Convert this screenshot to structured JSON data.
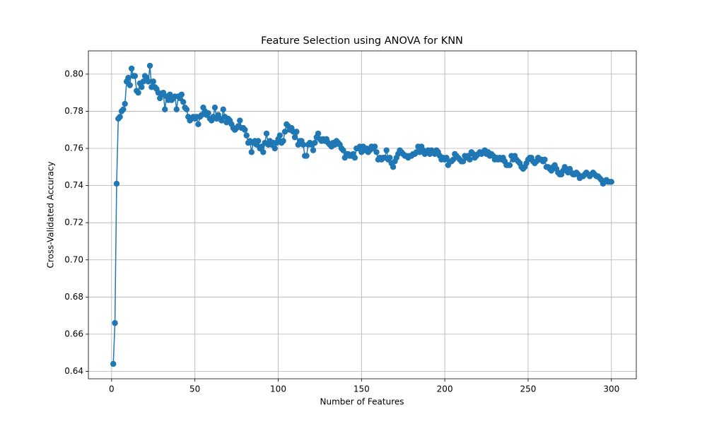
{
  "chart_data": {
    "type": "line",
    "title": "Feature Selection using ANOVA for KNN",
    "xlabel": "Number of Features",
    "ylabel": "Cross-Validated Accuracy",
    "color": "#1f77b4",
    "grid": true,
    "xlim": [
      -13.95,
      314.95
    ],
    "ylim": [
      0.636,
      0.8125
    ],
    "xticks": [
      0,
      50,
      100,
      150,
      200,
      250,
      300
    ],
    "yticks": [
      0.64,
      0.66,
      0.68,
      {
        "value": 0.7,
        "label": "0.70"
      },
      0.72,
      0.74,
      0.76,
      0.78,
      {
        "value": 0.8,
        "label": "0.80"
      }
    ],
    "x": [
      1,
      2,
      3,
      4,
      5,
      6,
      7,
      8,
      9,
      10,
      11,
      12,
      13,
      14,
      15,
      16,
      17,
      18,
      19,
      20,
      21,
      22,
      23,
      24,
      25,
      26,
      27,
      28,
      29,
      30,
      31,
      32,
      33,
      34,
      35,
      36,
      37,
      38,
      39,
      40,
      41,
      42,
      43,
      44,
      45,
      46,
      47,
      48,
      49,
      50,
      51,
      52,
      53,
      54,
      55,
      56,
      57,
      58,
      59,
      60,
      61,
      62,
      63,
      64,
      65,
      66,
      67,
      68,
      69,
      70,
      71,
      72,
      73,
      74,
      75,
      76,
      77,
      78,
      79,
      80,
      81,
      82,
      83,
      84,
      85,
      86,
      87,
      88,
      89,
      90,
      91,
      92,
      93,
      94,
      95,
      96,
      97,
      98,
      99,
      100,
      101,
      102,
      103,
      104,
      105,
      106,
      107,
      108,
      109,
      110,
      111,
      112,
      113,
      114,
      115,
      116,
      117,
      118,
      119,
      120,
      121,
      122,
      123,
      124,
      125,
      126,
      127,
      128,
      129,
      130,
      131,
      132,
      133,
      134,
      135,
      136,
      137,
      138,
      139,
      140,
      141,
      142,
      143,
      144,
      145,
      146,
      147,
      148,
      149,
      150,
      151,
      152,
      153,
      154,
      155,
      156,
      157,
      158,
      159,
      160,
      161,
      162,
      163,
      164,
      165,
      166,
      167,
      168,
      169,
      170,
      171,
      172,
      173,
      174,
      175,
      176,
      177,
      178,
      179,
      180,
      181,
      182,
      183,
      184,
      185,
      186,
      187,
      188,
      189,
      190,
      191,
      192,
      193,
      194,
      195,
      196,
      197,
      198,
      199,
      200,
      201,
      202,
      203,
      204,
      205,
      206,
      207,
      208,
      209,
      210,
      211,
      212,
      213,
      214,
      215,
      216,
      217,
      218,
      219,
      220,
      221,
      222,
      223,
      224,
      225,
      226,
      227,
      228,
      229,
      230,
      231,
      232,
      233,
      234,
      235,
      236,
      237,
      238,
      239,
      240,
      241,
      242,
      243,
      244,
      245,
      246,
      247,
      248,
      249,
      250,
      251,
      252,
      253,
      254,
      255,
      256,
      257,
      258,
      259,
      260,
      261,
      262,
      263,
      264,
      265,
      266,
      267,
      268,
      269,
      270,
      271,
      272,
      273,
      274,
      275,
      276,
      277,
      278,
      279,
      280,
      281,
      282,
      283,
      284,
      285,
      286,
      287,
      288,
      289,
      290,
      291,
      292,
      293,
      294,
      295,
      296,
      297,
      298,
      299,
      300
    ],
    "values": [
      0.644,
      0.666,
      0.741,
      0.776,
      0.777,
      0.78,
      0.781,
      0.784,
      0.796,
      0.798,
      0.794,
      0.803,
      0.799,
      0.799,
      0.791,
      0.79,
      0.795,
      0.793,
      0.796,
      0.799,
      0.798,
      0.796,
      0.8045,
      0.793,
      0.796,
      0.793,
      0.792,
      0.79,
      0.787,
      0.789,
      0.79,
      0.781,
      0.788,
      0.786,
      0.789,
      0.786,
      0.787,
      0.788,
      0.781,
      0.788,
      0.787,
      0.789,
      0.785,
      0.782,
      0.781,
      0.777,
      0.775,
      0.776,
      0.777,
      0.776,
      0.777,
      0.773,
      0.777,
      0.778,
      0.782,
      0.78,
      0.778,
      0.779,
      0.776,
      0.775,
      0.777,
      0.782,
      0.776,
      0.778,
      0.776,
      0.775,
      0.781,
      0.777,
      0.774,
      0.776,
      0.775,
      0.773,
      0.771,
      0.77,
      0.771,
      0.772,
      0.775,
      0.771,
      0.771,
      0.77,
      0.767,
      0.763,
      0.764,
      0.758,
      0.763,
      0.764,
      0.762,
      0.764,
      0.76,
      0.761,
      0.758,
      0.763,
      0.768,
      0.762,
      0.764,
      0.762,
      0.763,
      0.76,
      0.763,
      0.765,
      0.767,
      0.763,
      0.764,
      0.769,
      0.773,
      0.772,
      0.77,
      0.771,
      0.769,
      0.766,
      0.769,
      0.762,
      0.764,
      0.764,
      0.762,
      0.756,
      0.756,
      0.762,
      0.763,
      0.762,
      0.759,
      0.763,
      0.766,
      0.768,
      0.765,
      0.764,
      0.765,
      0.764,
      0.765,
      0.763,
      0.762,
      0.761,
      0.763,
      0.762,
      0.764,
      0.763,
      0.762,
      0.76,
      0.759,
      0.755,
      0.757,
      0.757,
      0.756,
      0.756,
      0.757,
      0.755,
      0.76,
      0.76,
      0.761,
      0.758,
      0.761,
      0.759,
      0.76,
      0.758,
      0.759,
      0.761,
      0.76,
      0.761,
      0.758,
      0.754,
      0.755,
      0.754,
      0.755,
      0.755,
      0.759,
      0.754,
      0.755,
      0.752,
      0.75,
      0.753,
      0.755,
      0.757,
      0.759,
      0.758,
      0.757,
      0.756,
      0.756,
      0.755,
      0.756,
      0.756,
      0.757,
      0.757,
      0.758,
      0.761,
      0.758,
      0.761,
      0.759,
      0.757,
      0.758,
      0.759,
      0.757,
      0.759,
      0.758,
      0.757,
      0.759,
      0.758,
      0.756,
      0.754,
      0.755,
      0.754,
      0.755,
      0.751,
      0.753,
      0.753,
      0.754,
      0.757,
      0.756,
      0.755,
      0.754,
      0.753,
      0.753,
      0.756,
      0.755,
      0.756,
      0.754,
      0.758,
      0.757,
      0.755,
      0.756,
      0.757,
      0.758,
      0.757,
      0.758,
      0.759,
      0.757,
      0.758,
      0.756,
      0.757,
      0.756,
      0.754,
      0.755,
      0.754,
      0.755,
      0.754,
      0.755,
      0.753,
      0.751,
      0.751,
      0.751,
      0.756,
      0.754,
      0.756,
      0.754,
      0.753,
      0.752,
      0.75,
      0.749,
      0.75,
      0.752,
      0.754,
      0.755,
      0.755,
      0.753,
      0.752,
      0.753,
      0.755,
      0.754,
      0.754,
      0.753,
      0.754,
      0.75,
      0.75,
      0.749,
      0.748,
      0.75,
      0.751,
      0.749,
      0.747,
      0.746,
      0.746,
      0.748,
      0.75,
      0.748,
      0.747,
      0.749,
      0.747,
      0.746,
      0.746,
      0.747,
      0.746,
      0.744,
      0.745,
      0.745,
      0.746,
      0.747,
      0.746,
      0.745,
      0.746,
      0.747,
      0.746,
      0.745,
      0.745,
      0.744,
      0.743,
      0.741,
      0.742,
      0.743,
      0.742,
      0.742,
      0.742
    ]
  }
}
